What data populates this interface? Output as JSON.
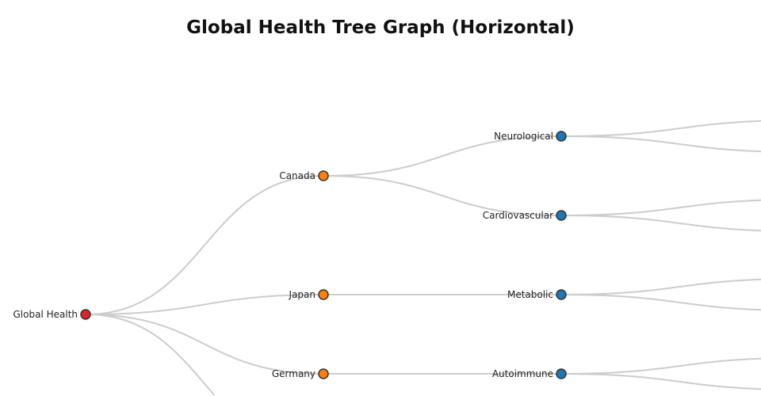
{
  "title": "Global Health Tree Graph (Horizontal)",
  "colors": {
    "root": "#d62728",
    "country": "#ff7f0e",
    "category": "#1f77b4",
    "link": "#cccccc"
  },
  "tree": {
    "name": "Global Health",
    "children": [
      {
        "name": "Canada",
        "children": [
          {
            "name": "Neurological",
            "children": [
              {
                "name": ""
              },
              {
                "name": ""
              }
            ]
          },
          {
            "name": "Cardiovascular",
            "children": [
              {
                "name": ""
              },
              {
                "name": ""
              }
            ]
          }
        ]
      },
      {
        "name": "Japan",
        "children": [
          {
            "name": "Metabolic",
            "children": [
              {
                "name": ""
              },
              {
                "name": ""
              }
            ]
          }
        ]
      },
      {
        "name": "Germany",
        "children": [
          {
            "name": "Autoimmune",
            "children": [
              {
                "name": ""
              },
              {
                "name": ""
              }
            ]
          }
        ]
      },
      {
        "name": ""
      }
    ]
  }
}
